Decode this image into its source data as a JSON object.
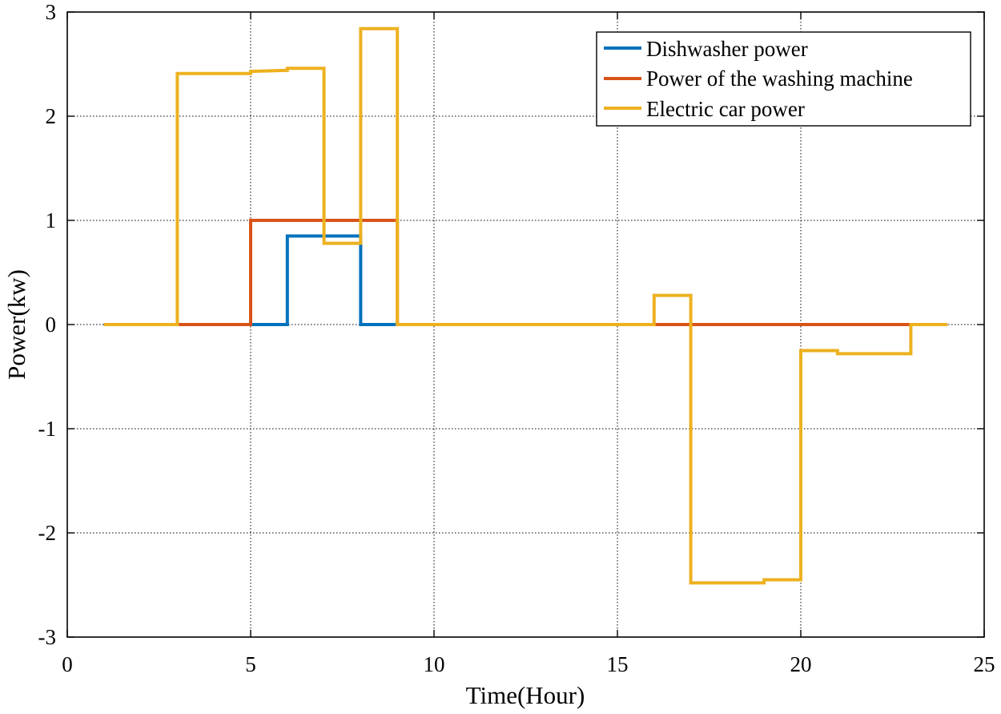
{
  "chart_data": {
    "type": "line",
    "title": "",
    "xlabel": "Time(Hour)",
    "ylabel": "Power(kw)",
    "xlim": [
      0,
      25
    ],
    "ylim": [
      -3,
      3
    ],
    "xticks": [
      0,
      5,
      10,
      15,
      20,
      25
    ],
    "yticks": [
      -3,
      -2,
      -1,
      0,
      1,
      2,
      3
    ],
    "grid": true,
    "legend_position": "top-right",
    "series": [
      {
        "name": "Dishwasher power",
        "color": "#0072BD",
        "step": true,
        "x": [
          1,
          6,
          6,
          8,
          8,
          9,
          9,
          24
        ],
        "y": [
          0,
          0,
          0.85,
          0.85,
          0,
          0,
          0,
          0
        ]
      },
      {
        "name": "Power of the washing machine",
        "color": "#D95319",
        "step": true,
        "x": [
          1,
          5,
          5,
          9,
          9,
          23
        ],
        "y": [
          0,
          0,
          1,
          1,
          0,
          0
        ]
      },
      {
        "name": "Electric car power",
        "color": "#EDB120",
        "step": true,
        "x": [
          1,
          3,
          3,
          5,
          5,
          6,
          6,
          7,
          7,
          8,
          8,
          9,
          9,
          16,
          16,
          17,
          17,
          19,
          19,
          20,
          20,
          21,
          21,
          23,
          23,
          24
        ],
        "y": [
          0,
          0,
          2.41,
          2.41,
          2.43,
          2.44,
          2.46,
          2.46,
          0.78,
          0.78,
          2.84,
          2.84,
          0,
          0,
          0.28,
          0.28,
          -2.48,
          -2.48,
          -2.45,
          -2.45,
          -0.25,
          -0.25,
          -0.28,
          -0.28,
          0,
          0
        ]
      }
    ]
  }
}
